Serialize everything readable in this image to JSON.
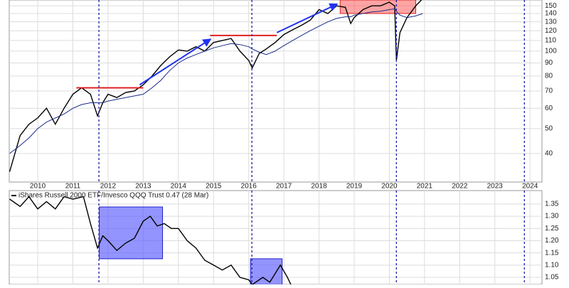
{
  "chart_data": [
    {
      "type": "line",
      "log_scale": true,
      "grid": true,
      "xlim": [
        2009.19,
        2024.34
      ],
      "xticks": [
        2010,
        2011,
        2012,
        2013,
        2014,
        2015,
        2016,
        2017,
        2018,
        2019,
        2020,
        2021,
        2022,
        2023,
        2024
      ],
      "ylim": [
        31,
        158
      ],
      "yticks": [
        40,
        50,
        60,
        70,
        80,
        90,
        100,
        110,
        120,
        130,
        140,
        150
      ],
      "x": [
        2009.2,
        2009.5,
        2009.75,
        2010.0,
        2010.25,
        2010.5,
        2010.75,
        2011.0,
        2011.25,
        2011.5,
        2011.7,
        2011.85,
        2012.0,
        2012.25,
        2012.5,
        2012.75,
        2013.0,
        2013.25,
        2013.5,
        2013.75,
        2014.0,
        2014.25,
        2014.5,
        2014.75,
        2015.0,
        2015.25,
        2015.5,
        2015.75,
        2016.0,
        2016.1,
        2016.3,
        2016.5,
        2016.75,
        2017.0,
        2017.25,
        2017.5,
        2017.75,
        2018.0,
        2018.25,
        2018.5,
        2018.75,
        2018.9,
        2019.0,
        2019.25,
        2019.5,
        2019.75,
        2020.0,
        2020.15,
        2020.2,
        2020.3,
        2020.5,
        2020.75,
        2020.95
      ],
      "series": [
        {
          "color": "#000000",
          "values": [
            34,
            47,
            52,
            55,
            60,
            52,
            60,
            68,
            72,
            68,
            56,
            63,
            68,
            66,
            69,
            70,
            74,
            80,
            88,
            95,
            101,
            100,
            104,
            100,
            108,
            110,
            112,
            100,
            92,
            86,
            98,
            102,
            108,
            116,
            121,
            126,
            132,
            145,
            140,
            150,
            148,
            128,
            135,
            145,
            150,
            150,
            155,
            150,
            92,
            118,
            135,
            150,
            160
          ]
        },
        {
          "color": "#1a2a8a",
          "values": [
            40,
            43,
            46,
            50,
            53,
            55,
            57,
            60,
            62,
            63,
            63,
            63,
            64,
            65,
            66,
            67,
            68,
            72,
            77,
            84,
            90,
            94,
            97,
            100,
            103,
            105,
            107,
            106,
            104,
            102,
            99,
            97,
            100,
            105,
            110,
            115,
            120,
            125,
            130,
            134,
            136,
            136,
            138,
            140,
            142,
            143,
            145,
            146,
            143,
            138,
            135,
            137,
            140
          ]
        }
      ],
      "vlines": [
        2011.74,
        2016.09,
        2020.2,
        2023.84
      ],
      "hlines": [
        {
          "x": [
            2011.1,
            2013.0
          ],
          "y": 72
        },
        {
          "x": [
            2014.9,
            2016.8
          ],
          "y": 115
        }
      ],
      "arrows": [
        {
          "x": [
            2012.9,
            2014.9
          ],
          "y": [
            74,
            111
          ]
        },
        {
          "x": [
            2016.8,
            2018.5
          ],
          "y": [
            118,
            152
          ]
        }
      ],
      "boxes": [
        {
          "x": [
            2018.6,
            2020.75
          ],
          "y": [
            140,
            158
          ]
        }
      ]
    },
    {
      "type": "line",
      "grid": true,
      "legend": "iShares Russell 2000 ETF/Invesco QQQ Trust 0.47 (28 Mar)",
      "xlim": [
        2009.19,
        2024.34
      ],
      "xticks": [
        2010,
        2011,
        2012,
        2013,
        2014,
        2015,
        2016,
        2017,
        2018,
        2019,
        2020,
        2021,
        2022,
        2023,
        2024
      ],
      "ylim": [
        1.021,
        1.405
      ],
      "yticks": [
        {
          "value": 1.05,
          "label": "1.05"
        },
        {
          "value": 1.1,
          "label": "1.10"
        },
        1.15,
        {
          "value": 1.2,
          "label": "1.20"
        },
        1.25,
        {
          "value": 1.3,
          "label": "1.30"
        },
        1.35
      ],
      "x": [
        2009.2,
        2009.5,
        2009.75,
        2010.0,
        2010.25,
        2010.5,
        2010.75,
        2011.0,
        2011.3,
        2011.5,
        2011.7,
        2011.85,
        2012.0,
        2012.25,
        2012.5,
        2012.75,
        2013.0,
        2013.2,
        2013.4,
        2013.6,
        2013.8,
        2014.0,
        2014.25,
        2014.5,
        2014.75,
        2015.0,
        2015.25,
        2015.5,
        2015.75,
        2016.0,
        2016.1,
        2016.4,
        2016.6,
        2016.9,
        2017.1,
        2017.2
      ],
      "series": [
        {
          "color": "#000000",
          "values": [
            1.37,
            1.34,
            1.38,
            1.33,
            1.36,
            1.33,
            1.38,
            1.37,
            1.38,
            1.27,
            1.17,
            1.22,
            1.2,
            1.16,
            1.19,
            1.21,
            1.28,
            1.3,
            1.26,
            1.27,
            1.25,
            1.25,
            1.2,
            1.17,
            1.12,
            1.1,
            1.08,
            1.1,
            1.05,
            1.04,
            1.02,
            1.05,
            1.03,
            1.1,
            1.05,
            1.02
          ]
        }
      ],
      "vlines": [
        2011.74,
        2016.09,
        2020.2,
        2023.84
      ],
      "boxes": [
        {
          "x": [
            2011.75,
            2013.55
          ],
          "y": [
            1.126,
            1.338
          ]
        },
        {
          "x": [
            2016.05,
            2016.95
          ],
          "y": [
            1.0,
            1.126
          ]
        }
      ]
    }
  ]
}
